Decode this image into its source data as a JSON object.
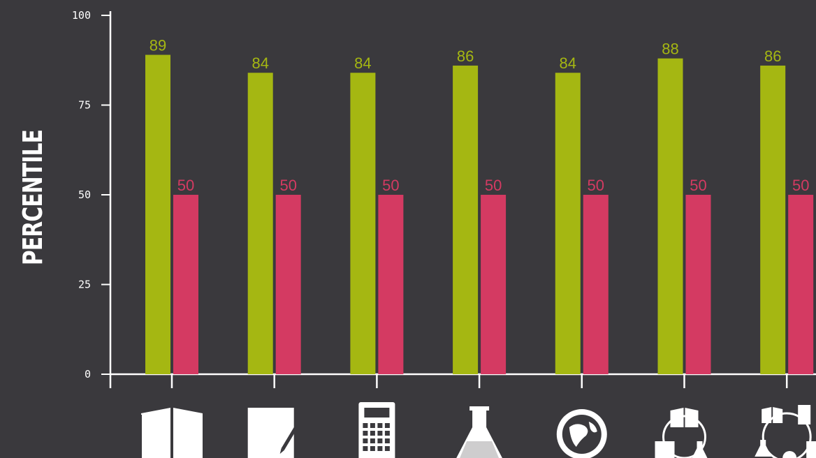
{
  "chart_data": {
    "type": "bar",
    "ylabel": "PERCENTILE",
    "ylim": [
      0,
      100
    ],
    "yticks": [
      0,
      25,
      50,
      75,
      100
    ],
    "ytick_labels": [
      "0",
      "25",
      "50",
      "75",
      "100"
    ],
    "categories": [
      "reading",
      "writing",
      "math",
      "science",
      "social-studies",
      "reading-writing",
      "composite"
    ],
    "category_icons": [
      "open-book-icon",
      "paper-pencil-icon",
      "calculator-icon",
      "flask-icon",
      "globe-icon",
      "reading-writing-cycle-icon",
      "all-subjects-cycle-icon"
    ],
    "series": [
      {
        "values": [
          89,
          84,
          84,
          86,
          84,
          88,
          86
        ],
        "labels": [
          "89",
          "84",
          "84",
          "86",
          "84",
          "88",
          "86"
        ],
        "color": "#a5b712"
      },
      {
        "values": [
          50,
          50,
          50,
          50,
          50,
          50,
          50
        ],
        "labels": [
          "50",
          "50",
          "50",
          "50",
          "50",
          "50",
          "50"
        ],
        "color": "#d43a62"
      }
    ],
    "grid": false
  },
  "colors": {
    "background": "#3a393d",
    "axis": "#ffffff",
    "icon": "#ffffff"
  }
}
